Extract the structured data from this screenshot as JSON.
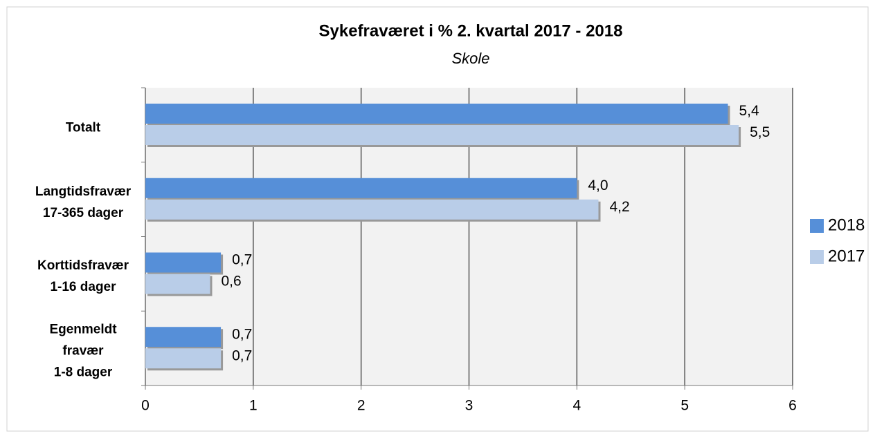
{
  "chart_data": {
    "type": "barh",
    "title": "Sykefraværet i %  2. kvartal 2017 - 2018",
    "subtitle": "Skole",
    "categories": [
      "Totalt",
      "Langtidsfravær\n17-365 dager",
      "Korttidsfravær\n1-16 dager",
      "Egenmeldt\nfravær\n1-8 dager"
    ],
    "series": [
      {
        "name": "2018",
        "color": "#568fd8",
        "values": [
          5.4,
          4.0,
          0.7,
          0.7
        ],
        "value_labels": [
          "5,4",
          "4,0",
          "0,7",
          "0,7"
        ]
      },
      {
        "name": "2017",
        "color": "#b9cde8",
        "values": [
          5.5,
          4.2,
          0.6,
          0.7
        ],
        "value_labels": [
          "5,5",
          "4,2",
          "0,6",
          "0,7"
        ]
      }
    ],
    "xlim": [
      0,
      6
    ],
    "xticks": [
      0,
      1,
      2,
      3,
      4,
      5,
      6
    ],
    "grid": true,
    "legend": "right"
  }
}
